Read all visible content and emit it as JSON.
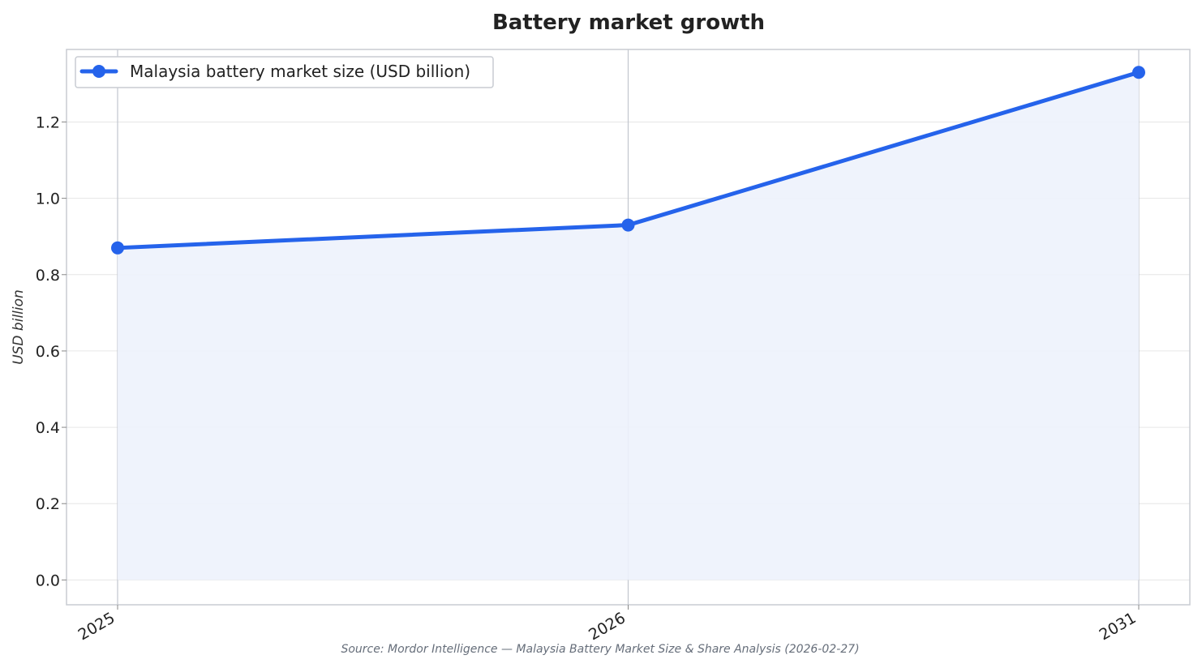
{
  "chart_data": {
    "type": "line",
    "title": "Battery market growth",
    "xlabel": "",
    "ylabel": "USD billion",
    "x": [
      "2025",
      "2026",
      "2031"
    ],
    "x_numeric": [
      2025,
      2026,
      2031
    ],
    "x_axis": "categorical-equal-spacing",
    "series": [
      {
        "name": "Malaysia battery market size (USD billion)",
        "values": [
          0.87,
          0.93,
          1.33
        ],
        "color": "#2563eb",
        "fill": "area",
        "marker": "circle"
      }
    ],
    "ylim": [
      -0.065,
      1.39
    ],
    "yticks": [
      0.0,
      0.2,
      0.4,
      0.6,
      0.8,
      1.0,
      1.2
    ],
    "ytick_labels": [
      "0.0",
      "0.2",
      "0.4",
      "0.6",
      "0.8",
      "1.0",
      "1.2"
    ],
    "grid": true,
    "legend_position": "top-left",
    "source_note": "Source: Mordor Intelligence — Malaysia Battery Market Size & Share Analysis (2026-02-27)",
    "colors": {
      "line": "#2563eb",
      "area_fill": "#edf2fc",
      "grid": "#e6e6e6",
      "vertical_guides": "#c2c6ce",
      "frame": "#c8ccd2"
    }
  }
}
